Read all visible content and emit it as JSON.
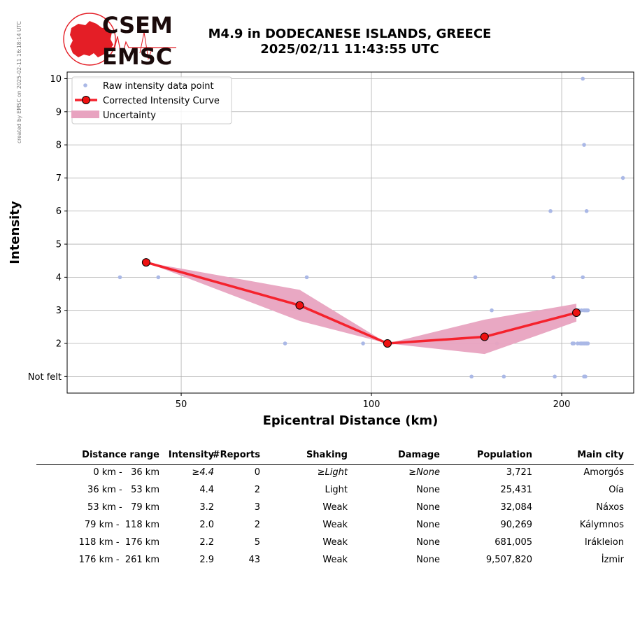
{
  "side_note": "created by EMSC on 2025-02-11 16:18:14 UTC",
  "logo": {
    "line1": "CSEM",
    "line2": "EMSC",
    "colors": {
      "red": "#e41e26",
      "dark": "#1a0a0a"
    }
  },
  "title": {
    "line1": "M4.9 in DODECANESE ISLANDS, GREECE",
    "line2": "2025/02/11 11:43:55 UTC"
  },
  "chart_data": {
    "type": "line",
    "xlabel": "Epicentral Distance (km)",
    "ylabel": "Intensity",
    "x_scale": "log",
    "xlim": [
      33,
      260
    ],
    "ylim": [
      0.5,
      10.2
    ],
    "x_ticks": [
      50,
      100,
      200
    ],
    "y_ticks": [
      1,
      2,
      3,
      4,
      5,
      6,
      7,
      8,
      9,
      10
    ],
    "y_tick_labels": [
      "Not felt",
      "2",
      "3",
      "4",
      "5",
      "6",
      "7",
      "8",
      "9",
      "10"
    ],
    "grid": true,
    "legend_position": "top-left",
    "legend": [
      "Raw intensity data point",
      "Corrected Intensity Curve",
      "Uncertainty"
    ],
    "colors": {
      "raw": "#aab8e6",
      "curve": "#f5222d",
      "marker_face": "#ee1111",
      "band": "#e8a3c0"
    },
    "raw_points": [
      [
        40,
        4
      ],
      [
        46,
        4
      ],
      [
        73,
        2
      ],
      [
        79,
        4
      ],
      [
        97,
        2
      ],
      [
        144,
        1
      ],
      [
        146,
        4
      ],
      [
        155,
        3
      ],
      [
        158,
        2
      ],
      [
        162,
        1
      ],
      [
        192,
        6
      ],
      [
        194,
        4
      ],
      [
        195,
        1
      ],
      [
        201,
        3
      ],
      [
        203,
        3
      ],
      [
        208,
        2
      ],
      [
        209,
        2
      ],
      [
        210,
        3
      ],
      [
        212,
        2
      ],
      [
        213,
        3
      ],
      [
        214,
        2
      ],
      [
        215,
        2
      ],
      [
        215,
        3
      ],
      [
        216,
        2
      ],
      [
        216,
        10
      ],
      [
        216,
        4
      ],
      [
        217,
        8
      ],
      [
        217,
        1
      ],
      [
        217,
        2
      ],
      [
        217,
        3
      ],
      [
        218,
        2
      ],
      [
        218,
        1
      ],
      [
        218,
        3
      ],
      [
        219,
        3
      ],
      [
        219,
        6
      ],
      [
        219,
        2
      ],
      [
        220,
        3
      ],
      [
        220,
        2
      ],
      [
        250,
        7
      ]
    ],
    "curve": {
      "x": [
        44,
        77,
        106,
        151,
        211
      ],
      "y": [
        4.45,
        3.15,
        2.0,
        2.2,
        2.93
      ],
      "upper": [
        4.45,
        3.62,
        2.0,
        2.72,
        3.2
      ],
      "lower": [
        4.45,
        2.68,
        2.0,
        1.68,
        2.66
      ]
    }
  },
  "table": {
    "headers": [
      "Distance range",
      "Intensity",
      "#Reports",
      "Shaking",
      "Damage",
      "Population",
      "Main city"
    ],
    "rows": [
      [
        "0 km -   36 km",
        "≥4.4",
        "0",
        "≥Light",
        "≥None",
        "3,721",
        "Amorgós"
      ],
      [
        "36 km -   53 km",
        "4.4",
        "2",
        "Light",
        "None",
        "25,431",
        "Oía"
      ],
      [
        "53 km -   79 km",
        "3.2",
        "3",
        "Weak",
        "None",
        "32,084",
        "Náxos"
      ],
      [
        "79 km -  118 km",
        "2.0",
        "2",
        "Weak",
        "None",
        "90,269",
        "Kálymnos"
      ],
      [
        "118 km -  176 km",
        "2.2",
        "5",
        "Weak",
        "None",
        "681,005",
        "Irákleion"
      ],
      [
        "176 km -  261 km",
        "2.9",
        "43",
        "Weak",
        "None",
        "9,507,820",
        "İzmir"
      ]
    ]
  }
}
